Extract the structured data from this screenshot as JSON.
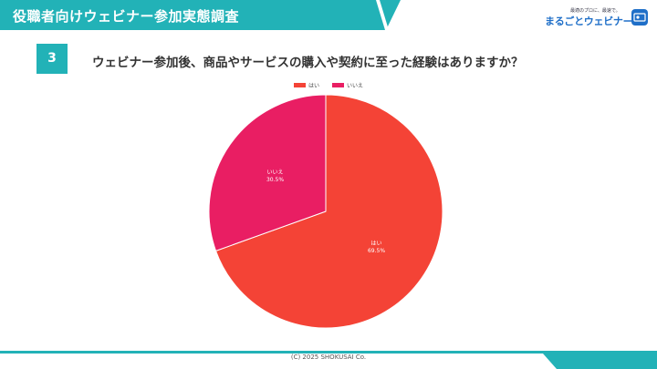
{
  "header": {
    "title": "役職者向けウェビナー参加実態調査",
    "logo_tagline": "最適のプロに、最速で。",
    "logo_name": "まるごとウェビナー"
  },
  "question": {
    "number": "3",
    "text": "ウェビナー参加後、商品やサービスの購入や契約に至った経験はありますか？"
  },
  "chart_data": {
    "type": "pie",
    "legend_position": "top-center",
    "slices": [
      {
        "label": "はい",
        "value": 69.5,
        "percent_text": "69.5%",
        "color": "#f44336"
      },
      {
        "label": "いいえ",
        "value": 30.5,
        "percent_text": "30.5%",
        "color": "#e91e63"
      }
    ]
  },
  "footer": {
    "copyright": "(C)  2025 SHOKUSAI Co."
  },
  "colors": {
    "accent": "#22b2b7",
    "brand_blue": "#1f6fc8"
  }
}
